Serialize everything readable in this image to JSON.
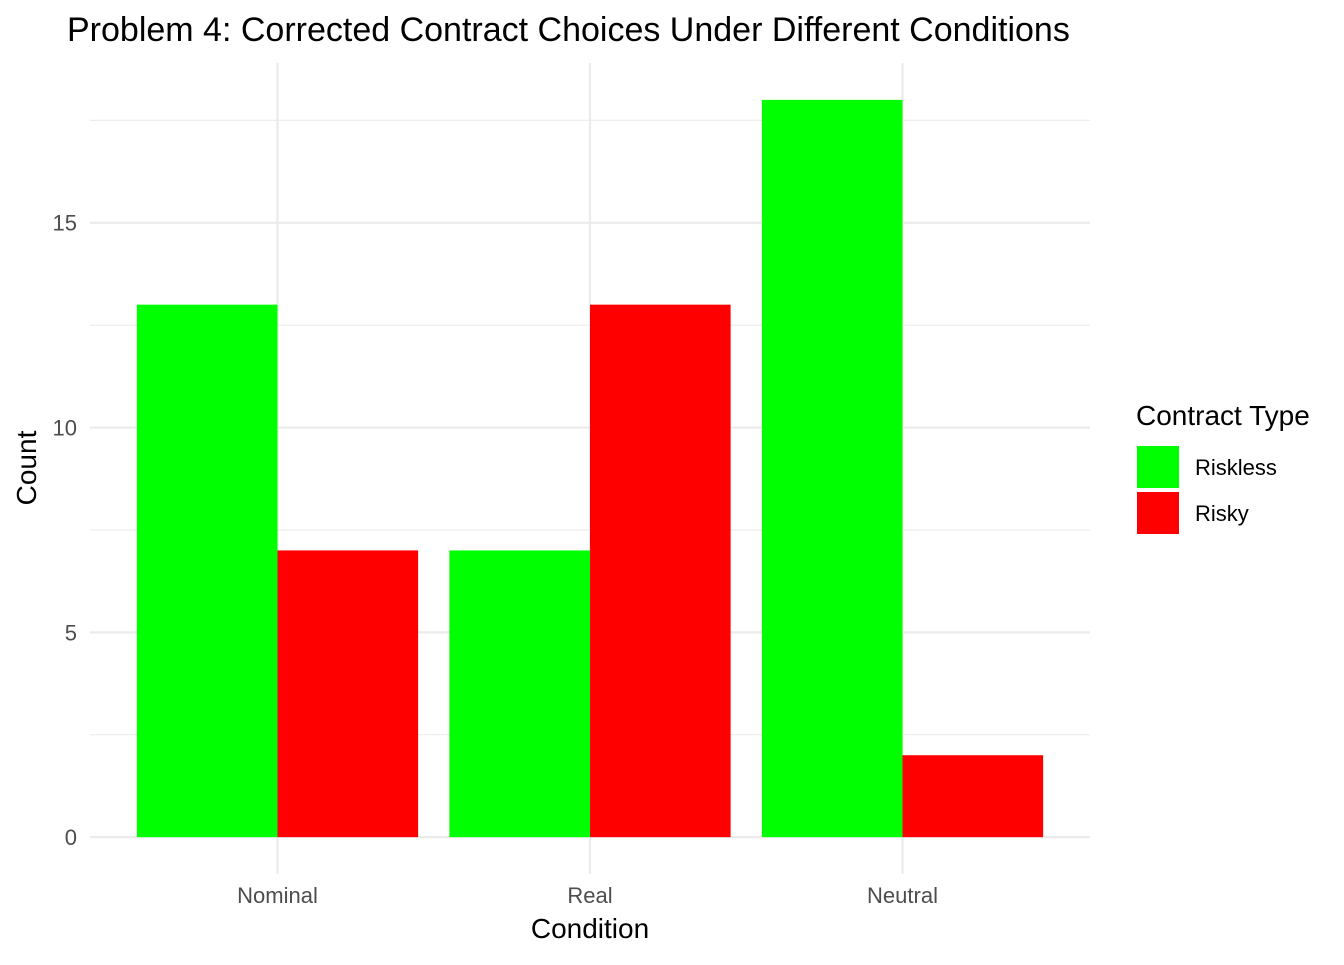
{
  "chart_data": {
    "type": "bar",
    "title": "Problem 4: Corrected Contract Choices Under Different Conditions",
    "xlabel": "Condition",
    "ylabel": "Count",
    "categories": [
      "Nominal",
      "Real",
      "Neutral"
    ],
    "series": [
      {
        "name": "Riskless",
        "color": "#00FF00",
        "values": [
          13,
          7,
          18
        ]
      },
      {
        "name": "Risky",
        "color": "#FF0000",
        "values": [
          7,
          13,
          2
        ]
      }
    ],
    "ylim": [
      -0.9,
      18.9
    ],
    "yticks": [
      0,
      5,
      10,
      15
    ],
    "yticks_minor": [
      2.5,
      7.5,
      12.5,
      17.5
    ],
    "grid": true,
    "legend": {
      "title": "Contract Type",
      "position": "right"
    }
  }
}
